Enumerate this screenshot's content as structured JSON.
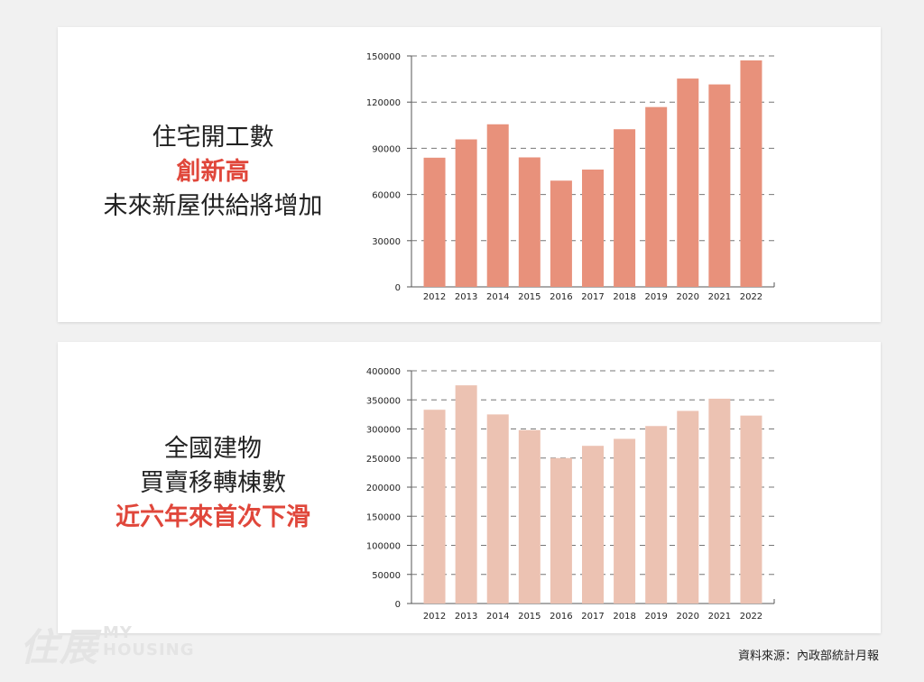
{
  "panels": [
    {
      "headline": [
        "住宅開工數",
        "創新高",
        "未來新屋供給將增加"
      ],
      "headline_emphasis": [
        false,
        true,
        false
      ]
    },
    {
      "headline": [
        "全國建物",
        "買賣移轉棟數",
        "近六年來首次下滑"
      ],
      "headline_emphasis": [
        false,
        false,
        true
      ]
    }
  ],
  "chart_data": [
    {
      "type": "bar",
      "categories": [
        "2012",
        "2013",
        "2014",
        "2015",
        "2016",
        "2017",
        "2018",
        "2019",
        "2020",
        "2021",
        "2022"
      ],
      "values": [
        83900,
        95800,
        105600,
        84100,
        69000,
        76200,
        102400,
        116800,
        135300,
        131500,
        147100
      ],
      "ylim": [
        0,
        150000
      ],
      "yticks": [
        "0",
        "30000",
        "60000",
        "90000",
        "120000",
        "150000"
      ],
      "grid": "dashed",
      "color": "#e8917b"
    },
    {
      "type": "bar",
      "categories": [
        "2012",
        "2013",
        "2014",
        "2015",
        "2016",
        "2017",
        "2018",
        "2019",
        "2020",
        "2021",
        "2022"
      ],
      "values": [
        333000,
        375000,
        325000,
        298000,
        250000,
        271000,
        283000,
        305000,
        331000,
        352000,
        323000
      ],
      "ylim": [
        0,
        400000
      ],
      "yticks": [
        "0",
        "50000",
        "100000",
        "150000",
        "200000",
        "250000",
        "300000",
        "350000",
        "400000"
      ],
      "grid": "dashed",
      "color": "#ecc2b2"
    }
  ],
  "source": "資料來源：內政部統計月報",
  "logo": {
    "main": "住展",
    "sub_line1": "MY",
    "sub_line2": "HOUSING"
  }
}
